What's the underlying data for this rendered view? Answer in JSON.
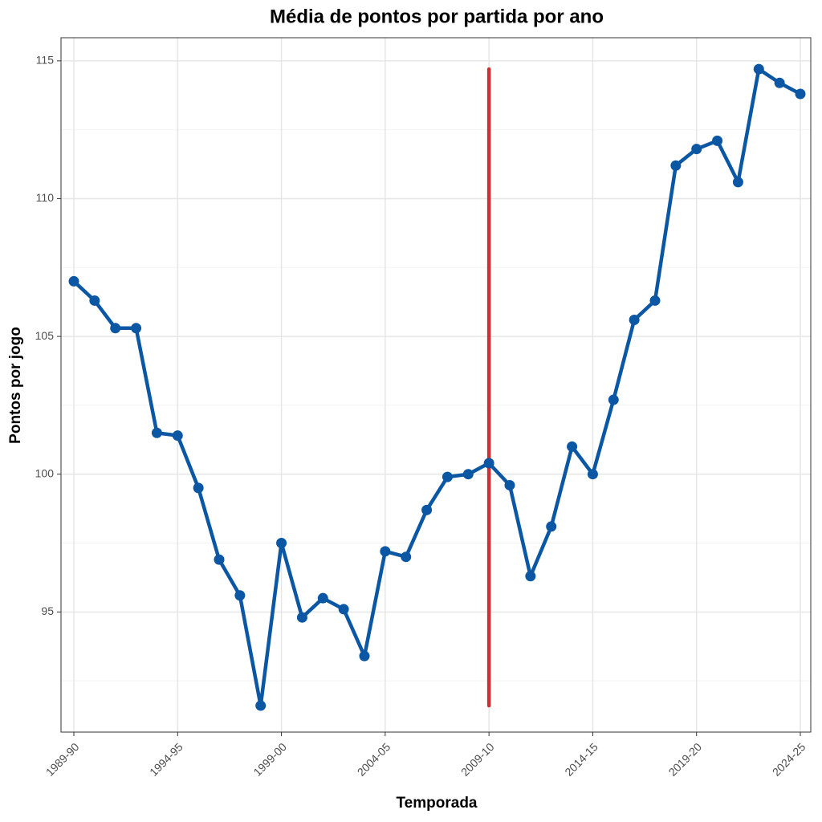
{
  "chart_data": {
    "type": "line",
    "title": "Média de pontos por partida por ano",
    "x_label": "Temporada",
    "y_label": "Pontos por jogo",
    "categories": [
      "1989-90",
      null,
      null,
      null,
      null,
      "1994-95",
      null,
      null,
      null,
      null,
      "1999-00",
      null,
      null,
      null,
      null,
      "2004-05",
      null,
      null,
      null,
      null,
      "2009-10",
      null,
      null,
      null,
      null,
      "2014-15",
      null,
      null,
      null,
      null,
      "2019-20",
      null,
      null,
      null,
      null,
      "2024-25"
    ],
    "series": [
      {
        "name": "Pontos por jogo",
        "color": "#0b57a4",
        "values": [
          107.0,
          106.3,
          105.3,
          105.3,
          101.5,
          101.4,
          99.5,
          96.9,
          95.6,
          91.6,
          97.5,
          94.8,
          95.5,
          95.1,
          93.4,
          97.2,
          97.0,
          98.7,
          99.9,
          100.0,
          100.4,
          99.6,
          96.3,
          98.1,
          101.0,
          100.0,
          102.7,
          105.6,
          106.3,
          111.2,
          111.8,
          112.1,
          110.6,
          114.7,
          114.2,
          113.8
        ]
      }
    ],
    "vline": {
      "x": "2009-10",
      "ymin": 91.6,
      "ymax": 114.7,
      "color": "#d03030"
    },
    "ylim": [
      90.64,
      115.84
    ],
    "yticks": [
      95,
      100,
      105,
      110,
      115
    ],
    "minor_yticks": [
      92.5,
      97.5,
      102.5,
      107.5,
      112.5
    ],
    "grid": true
  }
}
